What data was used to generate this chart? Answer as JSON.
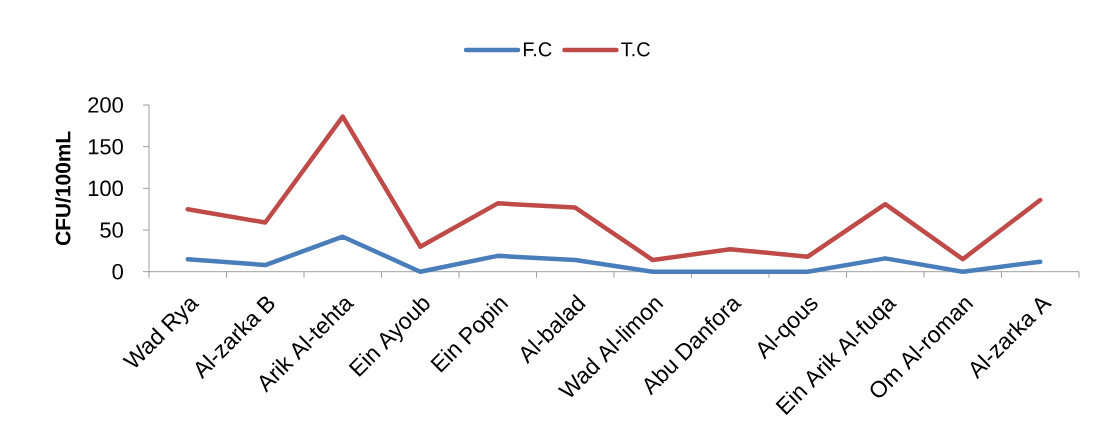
{
  "chart_data": {
    "type": "line",
    "categories": [
      "Wad Rya",
      "Al-zarka B",
      "Arik Al-tehta",
      "Ein Ayoub",
      "Ein Popin",
      "Al-balad",
      "Wad Al-limon",
      "Abu Danfora",
      "Al-qous",
      "Ein Arik Al-fuqa",
      "Om Al-roman",
      "Al-zarka A"
    ],
    "series": [
      {
        "name": "F.C",
        "color": "#4a7ebb",
        "values": [
          15,
          8,
          42,
          0,
          19,
          14,
          0,
          0,
          0,
          16,
          0,
          12
        ]
      },
      {
        "name": "T.C",
        "color": "#be4b48",
        "values": [
          75,
          59,
          186,
          30,
          82,
          77,
          14,
          27,
          18,
          81,
          15,
          86
        ]
      }
    ],
    "ylabel": "CFU/100mL",
    "ylim": [
      0,
      200
    ],
    "yticks": [
      0,
      50,
      100,
      150,
      200
    ],
    "legend": "top",
    "marker": "none"
  }
}
